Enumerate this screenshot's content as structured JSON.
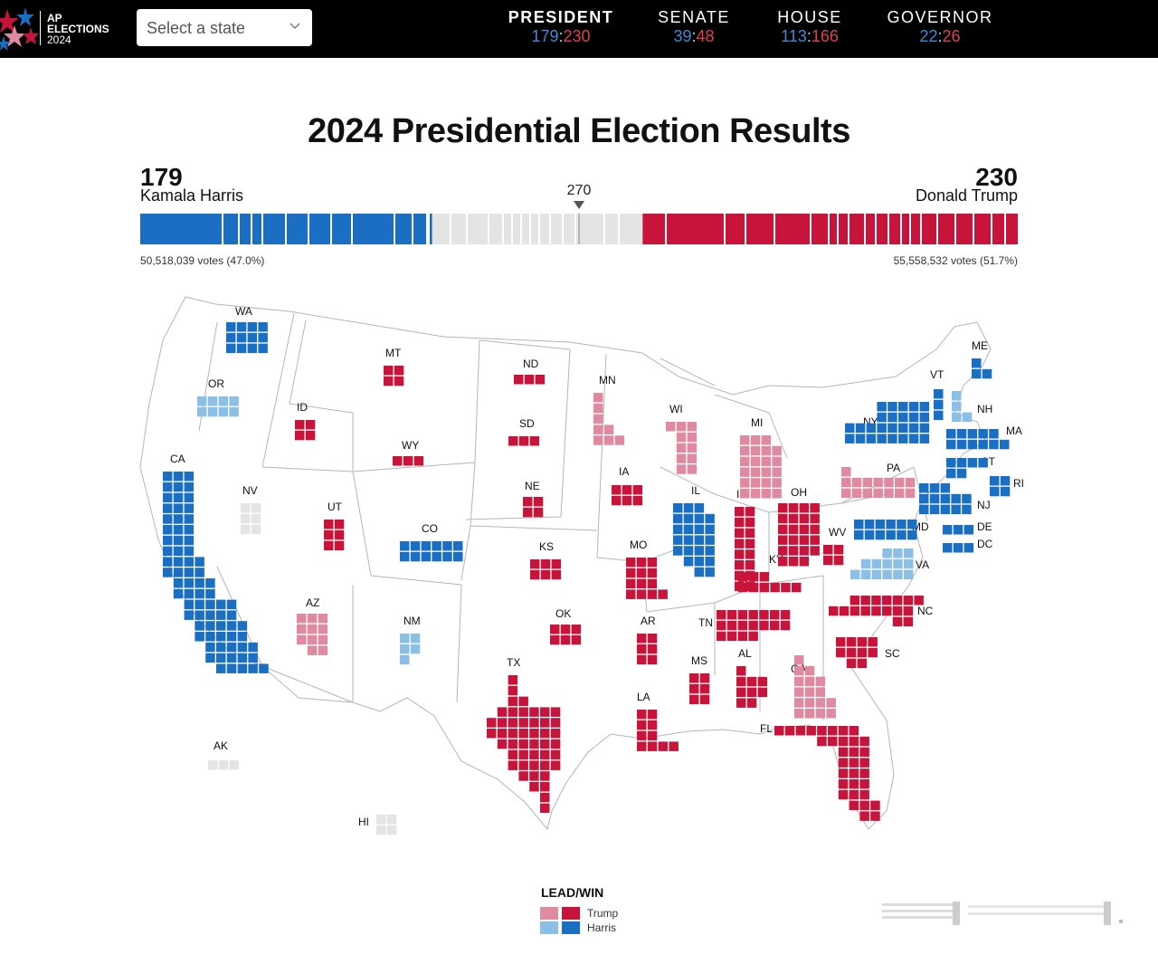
{
  "header": {
    "logo": {
      "line1": "AP",
      "line2": "ELECTIONS",
      "line3": "2024",
      "icon": "ap-stars-logo-icon"
    },
    "state_select": {
      "placeholder": "Select a state",
      "icon": "chevron-down-icon"
    },
    "races": [
      {
        "label": "PRESIDENT",
        "dem": "179",
        "rep": "230",
        "active": true
      },
      {
        "label": "SENATE",
        "dem": "39",
        "rep": "48",
        "active": false
      },
      {
        "label": "HOUSE",
        "dem": "113",
        "rep": "166",
        "active": false
      },
      {
        "label": "GOVERNOR",
        "dem": "22",
        "rep": "26",
        "active": false
      }
    ]
  },
  "title": "2024 Presidential Election Results",
  "tally": {
    "harris": {
      "ev": "179",
      "name": "Kamala Harris",
      "votes": "50,518,039 votes (47.0%)"
    },
    "trump": {
      "ev": "230",
      "name": "Donald Trump",
      "votes": "55,558,532 votes (51.7%)"
    },
    "needed": "270",
    "total_ev": 538
  },
  "colors": {
    "dem_win": "#1a6fc4",
    "dem_lead": "#8cbfe6",
    "rep_win": "#c8143a",
    "rep_lead": "#e08aa2",
    "undecided": "#e4e4e4",
    "header_bg": "#000000"
  },
  "states": [
    {
      "abbr": "WA",
      "status": "dem_win"
    },
    {
      "abbr": "OR",
      "status": "dem_lead"
    },
    {
      "abbr": "CA",
      "status": "dem_win"
    },
    {
      "abbr": "NV",
      "status": "undecided"
    },
    {
      "abbr": "ID",
      "status": "rep_win"
    },
    {
      "abbr": "MT",
      "status": "rep_win"
    },
    {
      "abbr": "WY",
      "status": "rep_win"
    },
    {
      "abbr": "UT",
      "status": "rep_win"
    },
    {
      "abbr": "AZ",
      "status": "rep_lead"
    },
    {
      "abbr": "CO",
      "status": "dem_win"
    },
    {
      "abbr": "NM",
      "status": "dem_lead"
    },
    {
      "abbr": "ND",
      "status": "rep_win"
    },
    {
      "abbr": "SD",
      "status": "rep_win"
    },
    {
      "abbr": "NE",
      "status": "rep_win"
    },
    {
      "abbr": "KS",
      "status": "rep_win"
    },
    {
      "abbr": "OK",
      "status": "rep_win"
    },
    {
      "abbr": "TX",
      "status": "rep_win"
    },
    {
      "abbr": "MN",
      "status": "rep_lead"
    },
    {
      "abbr": "IA",
      "status": "rep_win"
    },
    {
      "abbr": "MO",
      "status": "rep_win"
    },
    {
      "abbr": "AR",
      "status": "rep_win"
    },
    {
      "abbr": "LA",
      "status": "rep_win"
    },
    {
      "abbr": "WI",
      "status": "rep_lead"
    },
    {
      "abbr": "IL",
      "status": "dem_win"
    },
    {
      "abbr": "MS",
      "status": "rep_win"
    },
    {
      "abbr": "MI",
      "status": "rep_lead"
    },
    {
      "abbr": "IN",
      "status": "rep_win"
    },
    {
      "abbr": "KY",
      "status": "rep_win"
    },
    {
      "abbr": "TN",
      "status": "rep_win"
    },
    {
      "abbr": "AL",
      "status": "rep_win"
    },
    {
      "abbr": "OH",
      "status": "rep_win"
    },
    {
      "abbr": "WV",
      "status": "rep_win"
    },
    {
      "abbr": "GA",
      "status": "rep_lead"
    },
    {
      "abbr": "FL",
      "status": "rep_win"
    },
    {
      "abbr": "SC",
      "status": "rep_win"
    },
    {
      "abbr": "NC",
      "status": "rep_win"
    },
    {
      "abbr": "VA",
      "status": "dem_lead"
    },
    {
      "abbr": "PA",
      "status": "rep_lead"
    },
    {
      "abbr": "NY",
      "status": "dem_win"
    },
    {
      "abbr": "VT",
      "status": "dem_win"
    },
    {
      "abbr": "NH",
      "status": "dem_lead"
    },
    {
      "abbr": "ME",
      "status": "dem_win"
    },
    {
      "abbr": "MA",
      "status": "dem_win"
    },
    {
      "abbr": "CT",
      "status": "dem_win"
    },
    {
      "abbr": "RI",
      "status": "dem_win"
    },
    {
      "abbr": "NJ",
      "status": "dem_win"
    },
    {
      "abbr": "DE",
      "status": "dem_win"
    },
    {
      "abbr": "MD",
      "status": "dem_win"
    },
    {
      "abbr": "DC",
      "status": "dem_win"
    },
    {
      "abbr": "AK",
      "status": "undecided"
    },
    {
      "abbr": "HI",
      "status": "undecided"
    }
  ],
  "legend": {
    "title": "LEAD/WIN",
    "items": [
      {
        "label": "Trump"
      },
      {
        "label": "Harris"
      }
    ]
  }
}
